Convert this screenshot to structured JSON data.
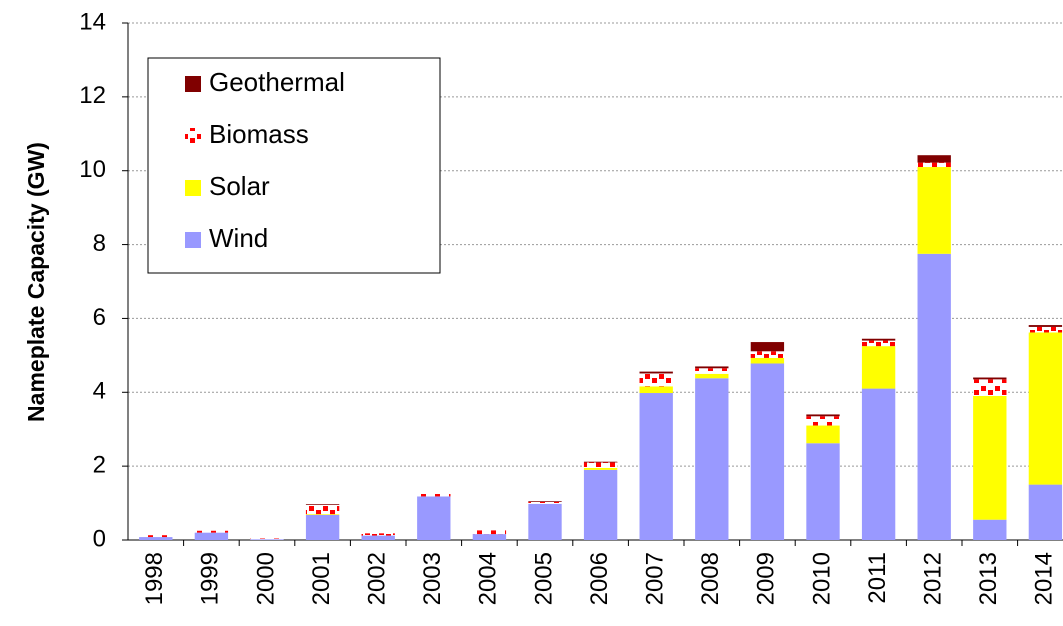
{
  "chart_data": {
    "type": "stacked_bar",
    "y_label": "Nameplate Capacity (GW)",
    "categories": [
      "1998",
      "1999",
      "2000",
      "2001",
      "2002",
      "2003",
      "2004",
      "2005",
      "2006",
      "2007",
      "2008",
      "2009",
      "2010",
      "2011",
      "2012",
      "2013",
      "2014"
    ],
    "series": [
      {
        "name": "Wind",
        "color": "#9999ff",
        "values": [
          0.08,
          0.2,
          0.02,
          0.68,
          0.12,
          1.18,
          0.16,
          0.98,
          1.9,
          3.98,
          4.38,
          4.78,
          2.62,
          4.1,
          7.75,
          0.55,
          1.5
        ]
      },
      {
        "name": "Solar",
        "color": "#ffff00",
        "values": [
          0,
          0,
          0,
          0.02,
          0,
          0,
          0,
          0,
          0.05,
          0.18,
          0.12,
          0.15,
          0.48,
          1.15,
          2.35,
          3.35,
          4.12
        ]
      },
      {
        "name": "Biomass",
        "color": "#ff0000",
        "pattern": "dotted",
        "values": [
          0.05,
          0.05,
          0.02,
          0.25,
          0.06,
          0.12,
          0.1,
          0.05,
          0.15,
          0.35,
          0.15,
          0.18,
          0.25,
          0.15,
          0.12,
          0.45,
          0.15
        ]
      },
      {
        "name": "Geothermal",
        "color": "#800000",
        "values": [
          0,
          0,
          0,
          0.02,
          0,
          0,
          0,
          0.02,
          0.02,
          0.05,
          0.05,
          0.25,
          0.05,
          0.05,
          0.2,
          0.05,
          0.05
        ]
      }
    ],
    "ylim": [
      0,
      14
    ],
    "yticks": [
      0,
      2,
      4,
      6,
      8,
      10,
      12,
      14
    ],
    "grid": true,
    "legend": "upper left"
  }
}
